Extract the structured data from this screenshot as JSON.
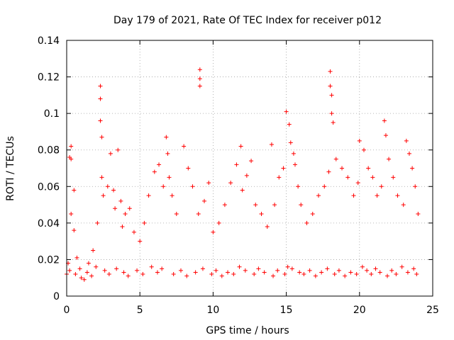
{
  "chart_data": {
    "type": "scatter",
    "title": "Day 179 of 2021, Rate Of TEC Index for receiver p012",
    "xlabel": "GPS time / hours",
    "ylabel": "ROTI / TECUs",
    "xlim": [
      0,
      25
    ],
    "ylim": [
      0,
      0.14
    ],
    "xticks": [
      0,
      5,
      10,
      15,
      20,
      25
    ],
    "yticks": [
      0,
      0.02,
      0.04,
      0.06,
      0.08,
      0.1,
      0.12,
      0.14
    ],
    "xtick_labels": [
      "0",
      "5",
      "10",
      "15",
      "20",
      "25"
    ],
    "ytick_labels": [
      "0",
      "0.02",
      "0.04",
      "0.06",
      "0.08",
      "0.1",
      "0.12",
      "0.14"
    ],
    "grid": true,
    "marker": "plus",
    "color": "#ff0000",
    "series": [
      {
        "x": [
          0.0,
          0.1,
          0.2,
          0.3,
          0.3,
          0.3,
          0.5,
          0.5,
          0.7,
          0.9,
          1.2,
          1.5,
          1.8,
          2.1,
          2.3,
          2.3,
          2.3,
          2.4,
          2.4,
          2.5,
          2.8,
          3.0,
          3.2,
          3.3,
          3.5,
          3.7,
          3.8,
          4.0,
          4.3,
          4.6,
          5.0,
          5.3,
          5.6,
          6.0,
          6.3,
          6.6,
          6.8,
          6.9,
          7.0,
          7.2,
          7.5,
          8.0,
          8.3,
          8.6,
          9.0,
          9.1,
          9.1,
          9.1,
          9.4,
          9.7,
          10.0,
          10.4,
          10.8,
          11.2,
          11.6,
          11.9,
          12.0,
          12.3,
          12.6,
          12.9,
          13.3,
          13.7,
          14.0,
          14.2,
          14.5,
          14.8,
          15.0,
          15.2,
          15.3,
          15.5,
          15.6,
          15.8,
          16.0,
          16.4,
          16.8,
          17.2,
          17.6,
          17.9,
          18.0,
          18.0,
          18.1,
          18.1,
          18.2,
          18.4,
          18.8,
          19.2,
          19.6,
          19.9,
          20.0,
          20.3,
          20.6,
          20.9,
          21.2,
          21.5,
          21.7,
          21.8,
          22.0,
          22.3,
          22.6,
          23.0,
          23.2,
          23.4,
          23.6,
          23.8,
          24.0,
          0.2,
          0.6,
          1.0,
          1.4,
          1.7,
          2.0,
          2.6,
          2.9,
          3.4,
          3.9,
          4.2,
          4.8,
          5.2,
          5.8,
          6.2,
          6.5,
          7.3,
          7.8,
          8.2,
          8.8,
          9.3,
          9.9,
          10.2,
          10.6,
          11.0,
          11.4,
          11.8,
          12.2,
          12.8,
          13.1,
          13.5,
          14.1,
          14.4,
          14.9,
          15.1,
          15.4,
          15.9,
          16.2,
          16.6,
          17.0,
          17.4,
          17.8,
          18.3,
          18.6,
          19.0,
          19.4,
          19.8,
          20.2,
          20.5,
          20.8,
          21.1,
          21.4,
          21.9,
          22.2,
          22.5,
          22.9,
          23.3,
          23.7,
          23.9
        ],
        "y": [
          0.012,
          0.018,
          0.076,
          0.082,
          0.075,
          0.045,
          0.058,
          0.036,
          0.021,
          0.015,
          0.009,
          0.018,
          0.025,
          0.04,
          0.115,
          0.108,
          0.096,
          0.087,
          0.065,
          0.055,
          0.06,
          0.078,
          0.058,
          0.048,
          0.08,
          0.052,
          0.038,
          0.045,
          0.048,
          0.035,
          0.03,
          0.04,
          0.055,
          0.068,
          0.072,
          0.06,
          0.087,
          0.078,
          0.065,
          0.055,
          0.045,
          0.082,
          0.07,
          0.06,
          0.045,
          0.124,
          0.119,
          0.115,
          0.052,
          0.062,
          0.035,
          0.04,
          0.05,
          0.062,
          0.072,
          0.082,
          0.058,
          0.066,
          0.074,
          0.05,
          0.045,
          0.038,
          0.083,
          0.05,
          0.065,
          0.07,
          0.101,
          0.094,
          0.084,
          0.078,
          0.072,
          0.06,
          0.05,
          0.04,
          0.045,
          0.055,
          0.06,
          0.068,
          0.123,
          0.115,
          0.11,
          0.1,
          0.095,
          0.075,
          0.07,
          0.065,
          0.055,
          0.062,
          0.085,
          0.08,
          0.07,
          0.065,
          0.055,
          0.06,
          0.096,
          0.088,
          0.075,
          0.065,
          0.055,
          0.05,
          0.085,
          0.078,
          0.07,
          0.06,
          0.045,
          0.014,
          0.012,
          0.01,
          0.013,
          0.011,
          0.016,
          0.014,
          0.012,
          0.015,
          0.013,
          0.011,
          0.014,
          0.012,
          0.016,
          0.013,
          0.015,
          0.012,
          0.014,
          0.011,
          0.013,
          0.015,
          0.012,
          0.014,
          0.011,
          0.013,
          0.012,
          0.016,
          0.014,
          0.012,
          0.015,
          0.013,
          0.011,
          0.014,
          0.012,
          0.016,
          0.015,
          0.013,
          0.012,
          0.014,
          0.011,
          0.013,
          0.015,
          0.012,
          0.014,
          0.011,
          0.013,
          0.012,
          0.016,
          0.014,
          0.012,
          0.015,
          0.013,
          0.011,
          0.014,
          0.012,
          0.016,
          0.013,
          0.015,
          0.012
        ]
      }
    ]
  }
}
